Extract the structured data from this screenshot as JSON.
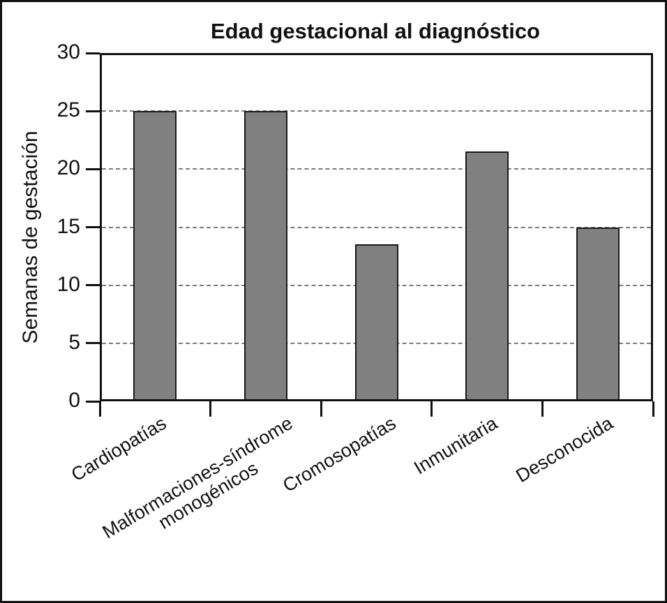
{
  "chart_data": {
    "type": "bar",
    "title": "Edad gestacional al diagnóstico",
    "xlabel": "",
    "ylabel": "Semanas de gestación",
    "categories": [
      "Cardiopatías",
      "Malformaciones-síndrome\nmonogénicos",
      "Cromosopatías",
      "Inmunitaria",
      "Desconocida"
    ],
    "values": [
      25,
      25,
      13.5,
      21.5,
      15
    ],
    "ylim": [
      0,
      30
    ],
    "yticks": [
      0,
      5,
      10,
      15,
      20,
      25,
      30
    ],
    "gridlines_at": [
      5,
      10,
      15,
      20,
      25
    ],
    "grid_style": "dashed",
    "legend_position": "none",
    "bar_color": "#808080",
    "bar_border_color": "#1a1a1a",
    "axis_color": "#111111"
  }
}
